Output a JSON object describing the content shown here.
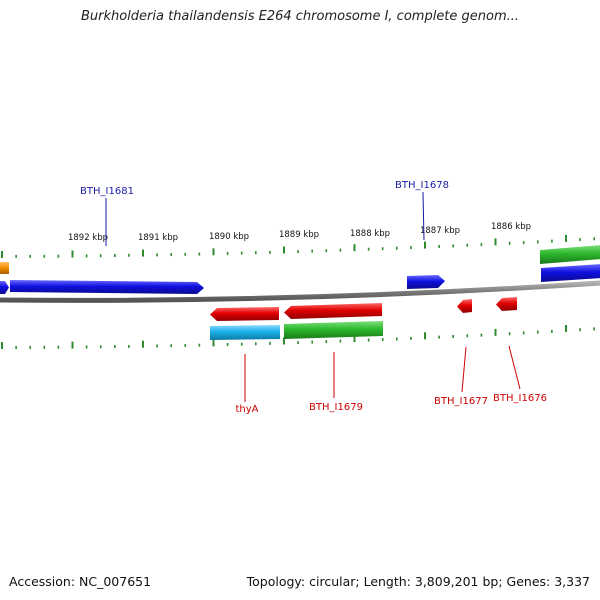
{
  "title": "Burkholderia thailandensis E264 chromosome I, complete genom...",
  "footer": {
    "accession": "Accession: NC_007651",
    "summary": "Topology: circular; Length: 3,809,201 bp; Genes: 3,337"
  },
  "scale_labels": [
    {
      "text": "1892 kbp",
      "kbp": 1892
    },
    {
      "text": "1891 kbp",
      "kbp": 1891
    },
    {
      "text": "1890 kbp",
      "kbp": 1890
    },
    {
      "text": "1889 kbp",
      "kbp": 1889
    },
    {
      "text": "1888 kbp",
      "kbp": 1888
    },
    {
      "text": "1887 kbp",
      "kbp": 1887
    },
    {
      "text": "1886 kbp",
      "kbp": 1886
    }
  ],
  "gene_labels": [
    {
      "text": "BTH_I1681",
      "strand": "forward"
    },
    {
      "text": "BTH_I1678",
      "strand": "forward"
    },
    {
      "text": "thyA",
      "strand": "reverse"
    },
    {
      "text": "BTH_I1679",
      "strand": "reverse"
    },
    {
      "text": "BTH_I1677",
      "strand": "reverse"
    },
    {
      "text": "BTH_I1676",
      "strand": "reverse"
    }
  ],
  "colors": {
    "forward_label": "#1a1aa6",
    "reverse_label": "#cc0000",
    "tick": "#2e8b2e",
    "backbone": "#808080",
    "blue": "#1010e0",
    "red": "#e00000",
    "green": "#2db82d",
    "cyan": "#1ab0e8",
    "orange": "#f08c00"
  }
}
